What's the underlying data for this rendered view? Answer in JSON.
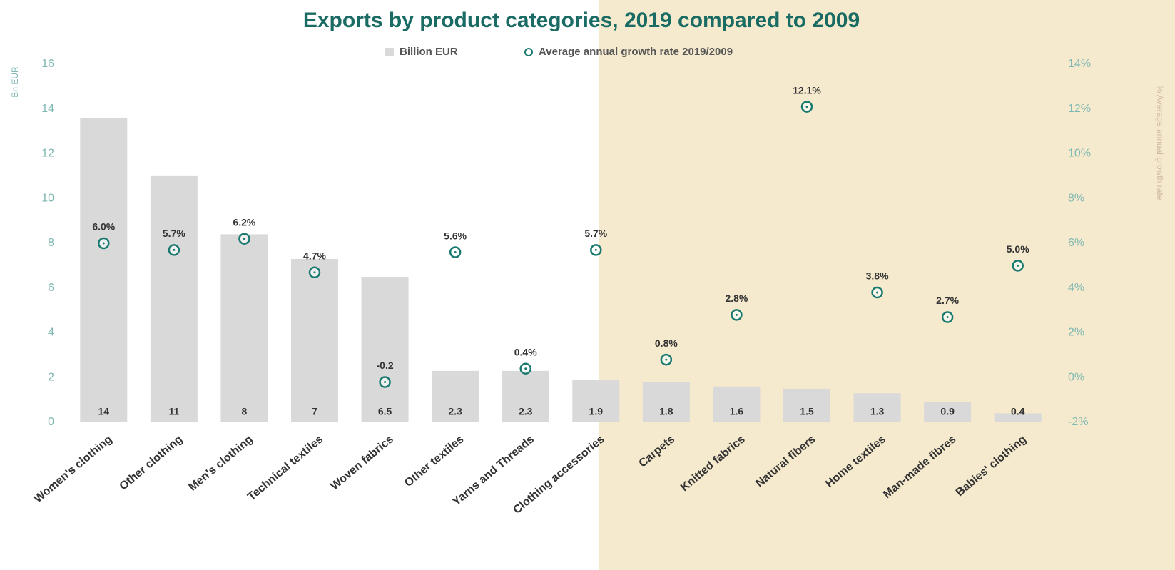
{
  "chart_data": {
    "type": "bar",
    "title": "Exports by product categories, 2019 compared to 2009",
    "ylabel": "Bn EUR",
    "y2label": "% Average annual growth rate",
    "categories": [
      "Women's clothing",
      "Other clothing",
      "Men's clothing",
      "Technical textiles",
      "Woven fabrics",
      "Other textiles",
      "Yarns and Threads",
      "Clothing accessories",
      "Carpets",
      "Knitted fabrics",
      "Natural fibers",
      "Home textiles",
      "Man-made fibres",
      "Babies' clothing"
    ],
    "series": [
      {
        "name": "Billion EUR",
        "type": "bar",
        "color": "#d9d9d9",
        "values": [
          13.6,
          11,
          8.4,
          7.3,
          6.5,
          2.3,
          2.3,
          1.9,
          1.8,
          1.6,
          1.5,
          1.3,
          0.9,
          0.4
        ],
        "value_labels": [
          "14",
          "11",
          "8",
          "7",
          "6.5",
          "2.3",
          "2.3",
          "1.9",
          "1.8",
          "1.6",
          "1.5",
          "1.3",
          "0.9",
          "0.4"
        ]
      },
      {
        "name": "Average annual growth rate 2019/2009",
        "type": "scatter",
        "axis": "y2",
        "color": "#1a7a70",
        "values": [
          6.0,
          5.7,
          6.2,
          4.7,
          -0.2,
          5.6,
          0.4,
          5.7,
          0.8,
          2.8,
          12.1,
          3.8,
          2.7,
          5.0
        ],
        "value_labels": [
          "6.0%",
          "5.7%",
          "6.2%",
          "4.7%",
          "-0.2",
          "5.6%",
          "0.4%",
          "5.7%",
          "0.8%",
          "2.8%",
          "12.1%",
          "3.8%",
          "2.7%",
          "5.0%"
        ]
      }
    ],
    "ylim": [
      0,
      16
    ],
    "yticks": [
      0,
      2,
      4,
      6,
      8,
      10,
      12,
      14,
      16
    ],
    "y2lim": [
      -2,
      14
    ],
    "y2ticks": [
      {
        "value": -2,
        "label": "-2%"
      },
      {
        "value": 0,
        "label": "0%"
      },
      {
        "value": 2,
        "label": "2%"
      },
      {
        "value": 4,
        "label": "4%"
      },
      {
        "value": 6,
        "label": "6%"
      },
      {
        "value": 8,
        "label": "8%"
      },
      {
        "value": 10,
        "label": "10%"
      },
      {
        "value": 12,
        "label": "12%"
      },
      {
        "value": 14,
        "label": "14%"
      }
    ],
    "grid": false
  }
}
